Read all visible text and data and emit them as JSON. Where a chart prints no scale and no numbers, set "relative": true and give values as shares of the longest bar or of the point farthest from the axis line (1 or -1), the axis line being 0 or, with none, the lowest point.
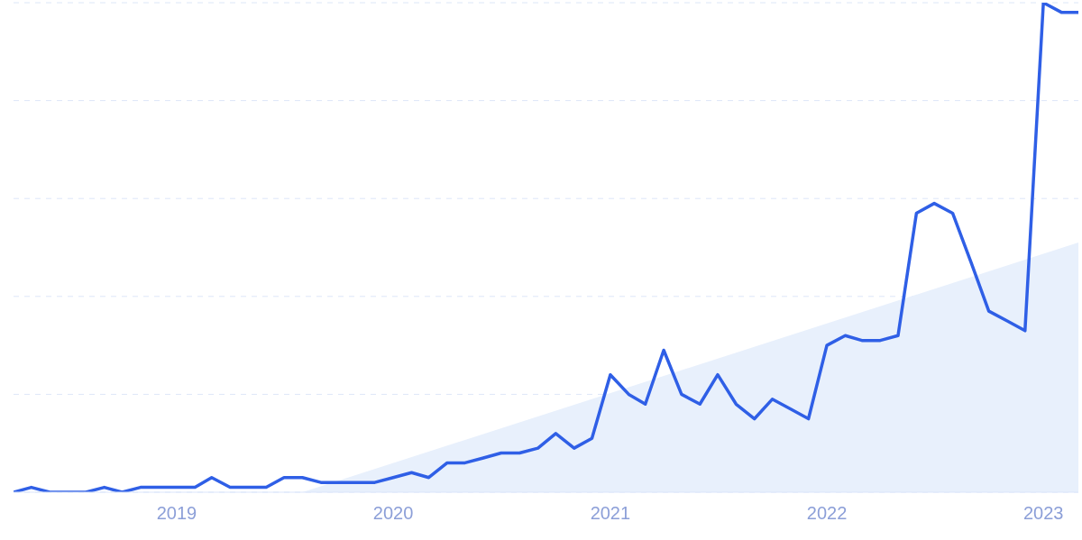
{
  "chart_data": {
    "type": "line",
    "relative": true,
    "grid": "y",
    "line_style": "solid",
    "marker": "none",
    "x": [
      "2018-04",
      "2018-05",
      "2018-06",
      "2018-07",
      "2018-08",
      "2018-09",
      "2018-10",
      "2018-11",
      "2018-12",
      "2019-01",
      "2019-02",
      "2019-03",
      "2019-04",
      "2019-05",
      "2019-06",
      "2019-07",
      "2019-08",
      "2019-09",
      "2019-10",
      "2019-11",
      "2019-12",
      "2020-01",
      "2020-02",
      "2020-03",
      "2020-04",
      "2020-05",
      "2020-06",
      "2020-07",
      "2020-08",
      "2020-09",
      "2020-10",
      "2020-11",
      "2020-12",
      "2021-01",
      "2021-02",
      "2021-03",
      "2021-04",
      "2021-05",
      "2021-06",
      "2021-07",
      "2021-08",
      "2021-09",
      "2021-10",
      "2021-11",
      "2021-12",
      "2022-01",
      "2022-02",
      "2022-03",
      "2022-04",
      "2022-05",
      "2022-06",
      "2022-07",
      "2022-08",
      "2022-09",
      "2022-10",
      "2022-11",
      "2022-12",
      "2023-01",
      "2023-02",
      "2023-03"
    ],
    "xlim": [
      "2018-04",
      "2023-03"
    ],
    "xticks": [
      "2019",
      "2020",
      "2021",
      "2022",
      "2023"
    ],
    "series": [
      {
        "color": "#2f5fe6",
        "values": [
          0,
          0.01,
          0,
          0,
          0,
          0.01,
          0,
          0.01,
          0.01,
          0.01,
          0.01,
          0.03,
          0.01,
          0.01,
          0.01,
          0.03,
          0.03,
          0.02,
          0.02,
          0.02,
          0.02,
          0.03,
          0.04,
          0.03,
          0.06,
          0.06,
          0.07,
          0.08,
          0.08,
          0.09,
          0.12,
          0.09,
          0.11,
          0.24,
          0.2,
          0.18,
          0.29,
          0.2,
          0.18,
          0.24,
          0.18,
          0.15,
          0.19,
          0.17,
          0.15,
          0.3,
          0.32,
          0.31,
          0.31,
          0.32,
          0.57,
          0.59,
          0.57,
          0.47,
          0.37,
          0.35,
          0.33,
          1,
          0.98,
          0.98
        ]
      },
      {
        "type": "area",
        "color": "#e8f0fc",
        "x": [
          "2019-08",
          "2023-03"
        ],
        "values": [
          0,
          0.51
        ]
      }
    ]
  }
}
